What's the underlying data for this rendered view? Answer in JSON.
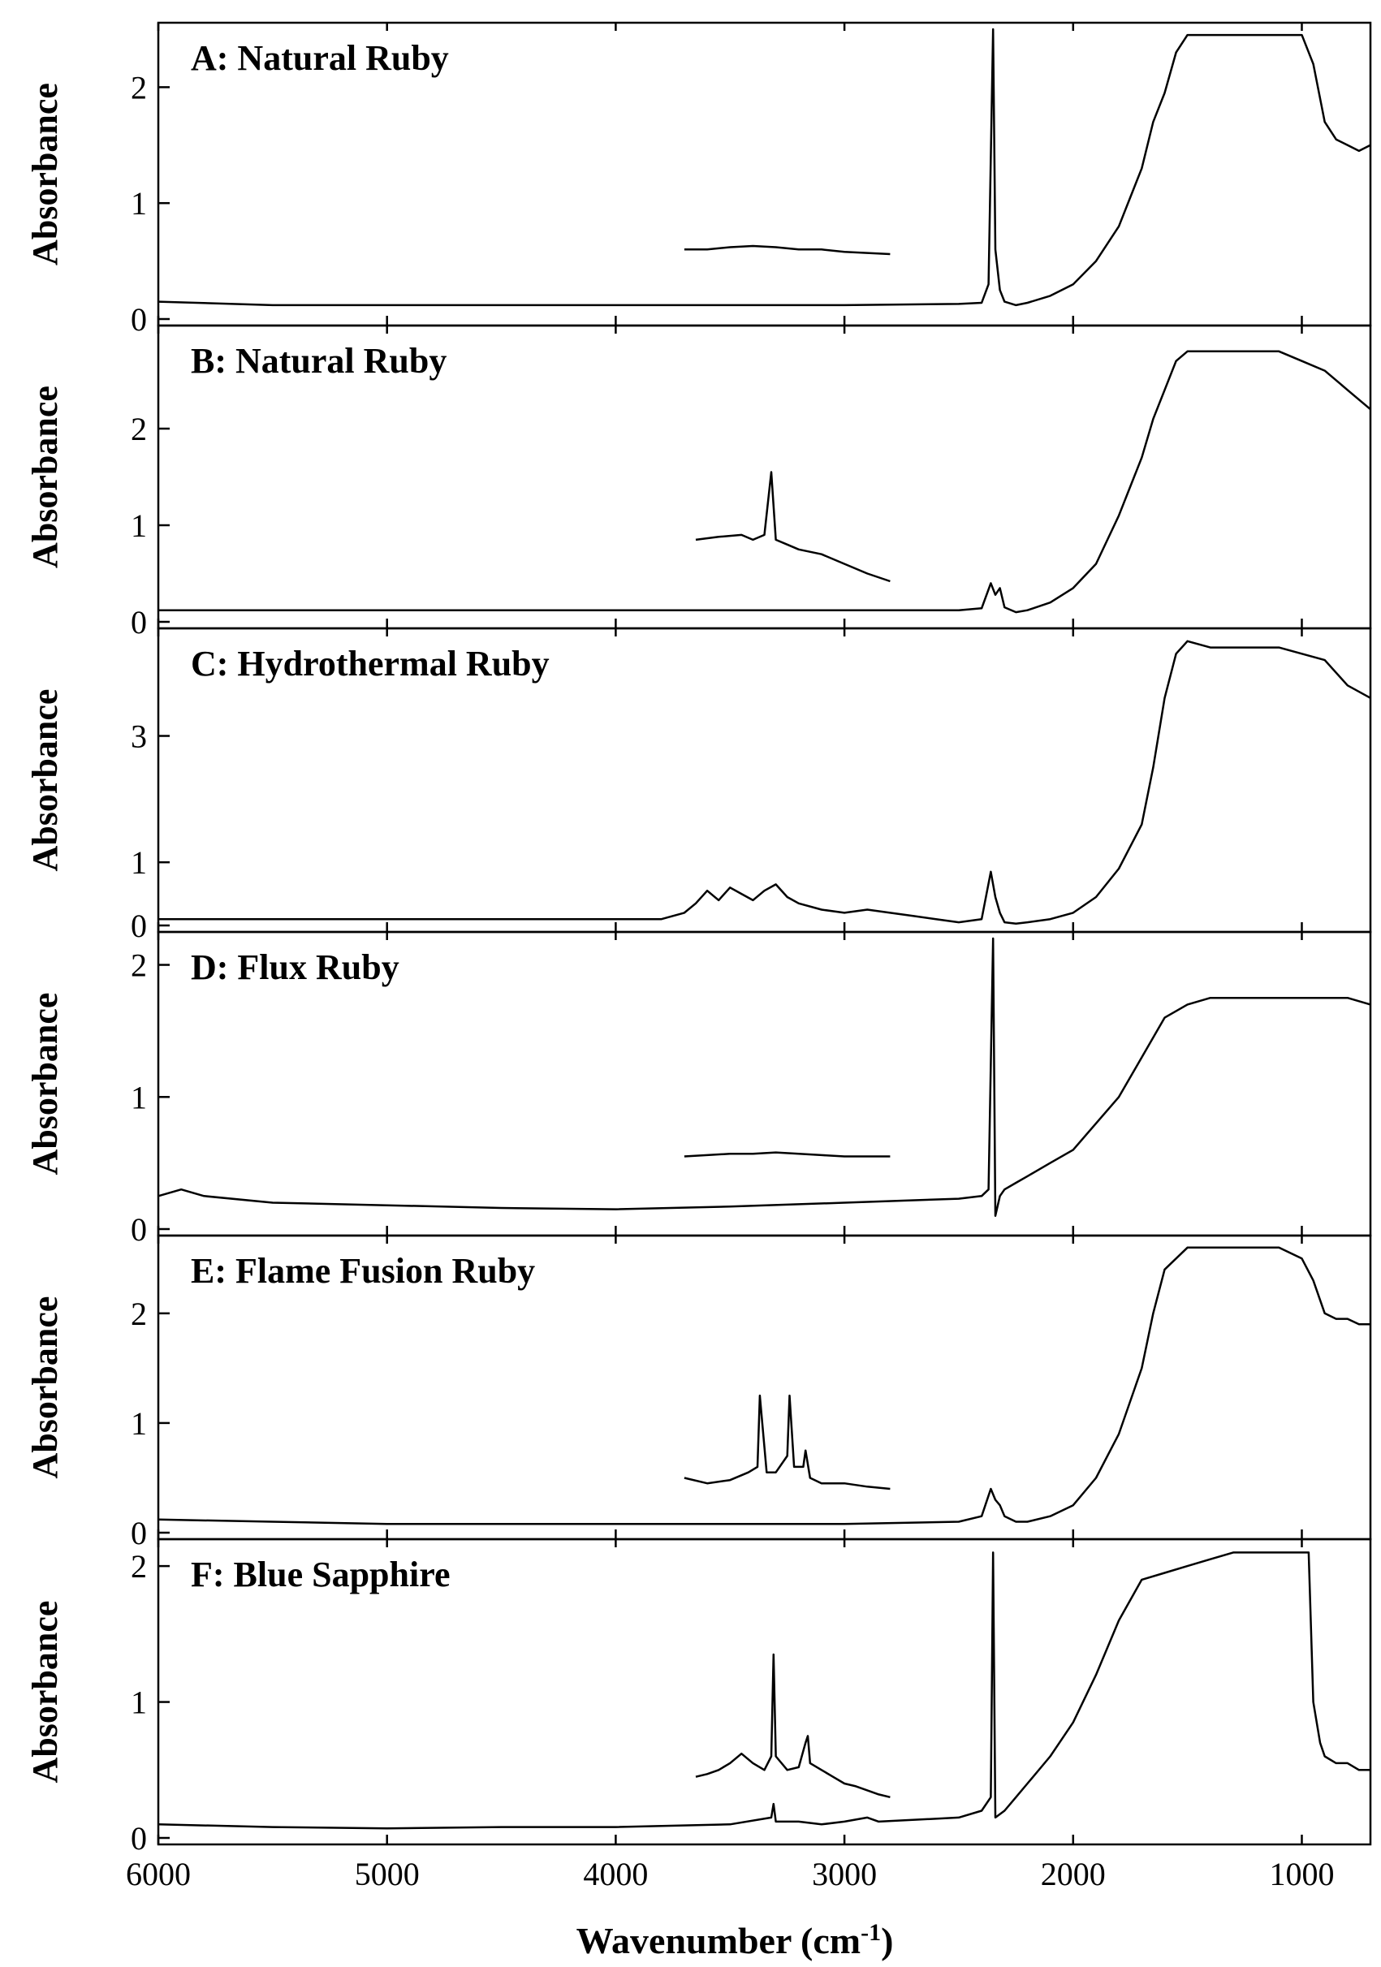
{
  "chart_data": {
    "type": "line",
    "xlabel": "Wavenumber (cm",
    "xlabel_sup": "-1",
    "xlabel_suffix": ")",
    "xlim": [
      6000,
      700
    ],
    "x_ticks": [
      6000,
      5000,
      4000,
      3000,
      2000,
      1000
    ],
    "x_tick_labels": [
      "6000",
      "5000",
      "4000",
      "3000",
      "2000",
      "1000"
    ],
    "panels": [
      {
        "label": "A: Natural Ruby",
        "ylabel": "Absorbance",
        "ylim": [
          0,
          2.5
        ],
        "y_ticks": [
          0,
          1,
          2
        ],
        "y_tick_labels": [
          "0",
          "1",
          "2"
        ],
        "series": [
          {
            "x": [
              6000,
              5500,
              5000,
              4500,
              4000,
              3500,
              3000,
              2500,
              2400,
              2370,
              2350,
              2340,
              2320,
              2300,
              2250,
              2200,
              2100,
              2000,
              1900,
              1800,
              1700,
              1650,
              1600,
              1550,
              1500,
              1400,
              1300,
              1200,
              1100,
              1000,
              950,
              900,
              850,
              800,
              750,
              700
            ],
            "y": [
              0.15,
              0.12,
              0.12,
              0.12,
              0.12,
              0.12,
              0.12,
              0.13,
              0.14,
              0.3,
              2.5,
              0.6,
              0.25,
              0.15,
              0.12,
              0.14,
              0.2,
              0.3,
              0.5,
              0.8,
              1.3,
              1.7,
              1.95,
              2.3,
              2.45,
              2.45,
              2.45,
              2.45,
              2.45,
              2.45,
              2.2,
              1.7,
              1.55,
              1.5,
              1.45,
              1.5
            ]
          },
          {
            "x": [
              3700,
              3600,
              3500,
              3400,
              3300,
              3200,
              3100,
              3000,
              2900,
              2800
            ],
            "y": [
              0.6,
              0.6,
              0.62,
              0.63,
              0.62,
              0.6,
              0.6,
              0.58,
              0.57,
              0.56
            ]
          }
        ]
      },
      {
        "label": "B: Natural Ruby",
        "ylabel": "Absorbance",
        "ylim": [
          0,
          3.0
        ],
        "y_ticks": [
          0,
          1,
          2
        ],
        "y_tick_labels": [
          "0",
          "1",
          "2"
        ],
        "series": [
          {
            "x": [
              6000,
              5500,
              5000,
              4500,
              4000,
              3500,
              3000,
              2500,
              2400,
              2360,
              2340,
              2320,
              2300,
              2250,
              2200,
              2100,
              2000,
              1900,
              1800,
              1700,
              1650,
              1600,
              1550,
              1500,
              1400,
              1300,
              1200,
              1100,
              1000,
              900,
              800,
              700
            ],
            "y": [
              0.12,
              0.12,
              0.12,
              0.12,
              0.12,
              0.12,
              0.12,
              0.12,
              0.14,
              0.4,
              0.28,
              0.35,
              0.15,
              0.1,
              0.12,
              0.2,
              0.35,
              0.6,
              1.1,
              1.7,
              2.1,
              2.4,
              2.7,
              2.8,
              2.8,
              2.8,
              2.8,
              2.8,
              2.7,
              2.6,
              2.4,
              2.2
            ]
          },
          {
            "x": [
              3650,
              3550,
              3450,
              3400,
              3350,
              3320,
              3300,
              3250,
              3200,
              3100,
              3000,
              2900,
              2800
            ],
            "y": [
              0.85,
              0.88,
              0.9,
              0.85,
              0.9,
              1.55,
              0.85,
              0.8,
              0.75,
              0.7,
              0.6,
              0.5,
              0.42
            ]
          }
        ]
      },
      {
        "label": "C: Hydrothermal Ruby",
        "ylabel": "Absorbance",
        "ylim": [
          0,
          4.6
        ],
        "y_ticks": [
          0,
          1,
          3
        ],
        "y_tick_labels": [
          "0",
          "1",
          "3"
        ],
        "series": [
          {
            "x": [
              6000,
              5500,
              5000,
              4500,
              4000,
              3800,
              3700,
              3650,
              3600,
              3550,
              3500,
              3450,
              3400,
              3350,
              3300,
              3250,
              3200,
              3100,
              3000,
              2900,
              2800,
              2700,
              2600,
              2500,
              2400,
              2360,
              2340,
              2320,
              2300,
              2250,
              2200,
              2100,
              2000,
              1900,
              1800,
              1700,
              1650,
              1600,
              1550,
              1500,
              1400,
              1300,
              1200,
              1100,
              1000,
              900,
              800,
              700
            ],
            "y": [
              0.1,
              0.1,
              0.1,
              0.1,
              0.1,
              0.1,
              0.2,
              0.35,
              0.55,
              0.4,
              0.6,
              0.5,
              0.4,
              0.55,
              0.65,
              0.45,
              0.35,
              0.25,
              0.2,
              0.25,
              0.2,
              0.15,
              0.1,
              0.05,
              0.1,
              0.85,
              0.45,
              0.2,
              0.05,
              0.03,
              0.05,
              0.1,
              0.2,
              0.45,
              0.9,
              1.6,
              2.5,
              3.6,
              4.3,
              4.5,
              4.4,
              4.4,
              4.4,
              4.4,
              4.3,
              4.2,
              3.8,
              3.6
            ]
          }
        ]
      },
      {
        "label": "D: Flux Ruby",
        "ylabel": "Absorbance",
        "ylim": [
          0,
          2.2
        ],
        "y_ticks": [
          0,
          1,
          2
        ],
        "y_tick_labels": [
          "0",
          "1",
          "2"
        ],
        "series": [
          {
            "x": [
              6000,
              5900,
              5800,
              5500,
              5000,
              4500,
              4000,
              3500,
              3000,
              2500,
              2400,
              2370,
              2350,
              2340,
              2320,
              2300,
              2250,
              2200,
              2100,
              2000,
              1900,
              1800,
              1700,
              1600,
              1500,
              1400,
              1300,
              1200,
              1100,
              1000,
              900,
              800,
              700
            ],
            "y": [
              0.25,
              0.3,
              0.25,
              0.2,
              0.18,
              0.16,
              0.15,
              0.17,
              0.2,
              0.23,
              0.25,
              0.3,
              2.2,
              0.1,
              0.25,
              0.3,
              0.35,
              0.4,
              0.5,
              0.6,
              0.8,
              1.0,
              1.3,
              1.6,
              1.7,
              1.75,
              1.75,
              1.75,
              1.75,
              1.75,
              1.75,
              1.75,
              1.7
            ]
          },
          {
            "x": [
              3700,
              3600,
              3500,
              3400,
              3300,
              3200,
              3100,
              3000,
              2900,
              2800
            ],
            "y": [
              0.55,
              0.56,
              0.57,
              0.57,
              0.58,
              0.57,
              0.56,
              0.55,
              0.55,
              0.55
            ]
          }
        ]
      },
      {
        "label": "E: Flame Fusion Ruby",
        "ylabel": "Absorbance",
        "ylim": [
          0,
          2.65
        ],
        "y_ticks": [
          0,
          1,
          2
        ],
        "y_tick_labels": [
          "0",
          "1",
          "2"
        ],
        "series": [
          {
            "x": [
              6000,
              5500,
              5000,
              4500,
              4000,
              3500,
              3000,
              2500,
              2400,
              2360,
              2340,
              2320,
              2300,
              2250,
              2200,
              2100,
              2000,
              1900,
              1800,
              1700,
              1650,
              1600,
              1500,
              1400,
              1300,
              1200,
              1100,
              1000,
              950,
              900,
              850,
              800,
              750,
              700
            ],
            "y": [
              0.12,
              0.1,
              0.08,
              0.08,
              0.08,
              0.08,
              0.08,
              0.1,
              0.15,
              0.4,
              0.3,
              0.25,
              0.15,
              0.1,
              0.1,
              0.15,
              0.25,
              0.5,
              0.9,
              1.5,
              2.0,
              2.4,
              2.6,
              2.6,
              2.6,
              2.6,
              2.6,
              2.5,
              2.3,
              2.0,
              1.95,
              1.95,
              1.9,
              1.9
            ]
          },
          {
            "x": [
              3700,
              3600,
              3500,
              3420,
              3380,
              3370,
              3340,
              3300,
              3250,
              3240,
              3220,
              3180,
              3170,
              3150,
              3100,
              3000,
              2900,
              2800
            ],
            "y": [
              0.5,
              0.45,
              0.48,
              0.55,
              0.6,
              1.25,
              0.55,
              0.55,
              0.7,
              1.25,
              0.6,
              0.6,
              0.75,
              0.5,
              0.45,
              0.45,
              0.42,
              0.4
            ]
          }
        ]
      },
      {
        "label": "F: Blue Sapphire",
        "ylabel": "Absorbance",
        "ylim": [
          0,
          2.15
        ],
        "y_ticks": [
          0,
          1,
          2
        ],
        "y_tick_labels": [
          "0",
          "1",
          "2"
        ],
        "series": [
          {
            "x": [
              6000,
              5500,
              5000,
              4500,
              4000,
              3500,
              3320,
              3310,
              3300,
              3200,
              3100,
              3000,
              2900,
              2850,
              2500,
              2400,
              2360,
              2350,
              2340,
              2300,
              2250,
              2200,
              2100,
              2000,
              1900,
              1800,
              1700,
              1600,
              1500,
              1400,
              1300,
              1200,
              1100,
              1000,
              970,
              950,
              920,
              900,
              850,
              800,
              750,
              700
            ],
            "y": [
              0.1,
              0.08,
              0.07,
              0.08,
              0.08,
              0.1,
              0.15,
              0.25,
              0.12,
              0.12,
              0.1,
              0.12,
              0.15,
              0.12,
              0.15,
              0.2,
              0.3,
              2.1,
              0.15,
              0.2,
              0.3,
              0.4,
              0.6,
              0.85,
              1.2,
              1.6,
              1.9,
              1.95,
              2.0,
              2.05,
              2.1,
              2.1,
              2.1,
              2.1,
              2.1,
              1.0,
              0.7,
              0.6,
              0.55,
              0.55,
              0.5,
              0.5
            ]
          },
          {
            "x": [
              3650,
              3600,
              3550,
              3500,
              3450,
              3400,
              3350,
              3320,
              3310,
              3300,
              3250,
              3200,
              3170,
              3160,
              3150,
              3100,
              3050,
              3000,
              2950,
              2900,
              2850,
              2800
            ],
            "y": [
              0.45,
              0.47,
              0.5,
              0.55,
              0.62,
              0.55,
              0.5,
              0.6,
              1.35,
              0.6,
              0.5,
              0.52,
              0.7,
              0.75,
              0.55,
              0.5,
              0.45,
              0.4,
              0.38,
              0.35,
              0.32,
              0.3
            ]
          }
        ]
      }
    ]
  }
}
